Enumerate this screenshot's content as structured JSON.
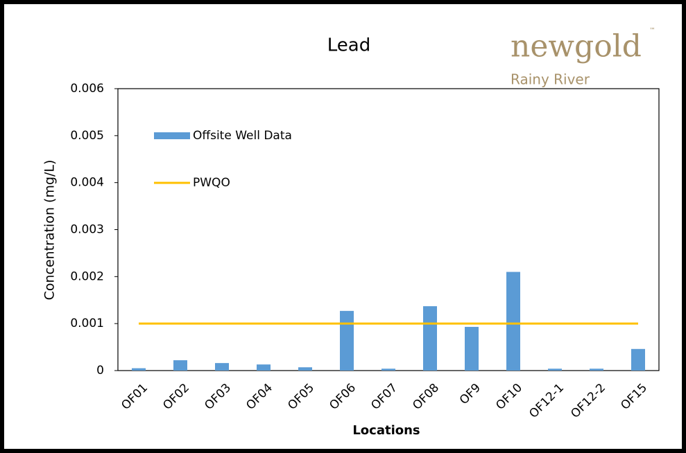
{
  "chart_data": {
    "type": "bar",
    "title": "Lead",
    "annotations": [
      "newgold",
      "™",
      "Rainy River"
    ],
    "x_label": "Locations",
    "y_label": "Concentration (mg/L)",
    "categories": [
      "OF01",
      "OF02",
      "OF03",
      "OF04",
      "OF05",
      "OF06",
      "OF07",
      "OF08",
      "OF9",
      "OF10",
      "OF12-1",
      "OF12-2",
      "OF15"
    ],
    "series": [
      {
        "name": "Offsite Well Data",
        "type": "bar",
        "color": "#5b9bd5",
        "values": [
          5e-05,
          0.00022,
          0.00016,
          0.00013,
          7e-05,
          0.00127,
          4e-05,
          0.00137,
          0.00093,
          0.0021,
          4e-05,
          4e-05,
          0.00046
        ]
      },
      {
        "name": "PWQO",
        "type": "line",
        "color": "#ffc000",
        "values": [
          0.001,
          0.001,
          0.001,
          0.001,
          0.001,
          0.001,
          0.001,
          0.001,
          0.001,
          0.001,
          0.001,
          0.001,
          0.001
        ]
      }
    ],
    "ylim": [
      0,
      0.006
    ],
    "yticks": [
      0,
      0.001,
      0.002,
      0.003,
      0.004,
      0.005,
      0.006
    ],
    "legend": "upper left",
    "grid": false
  }
}
